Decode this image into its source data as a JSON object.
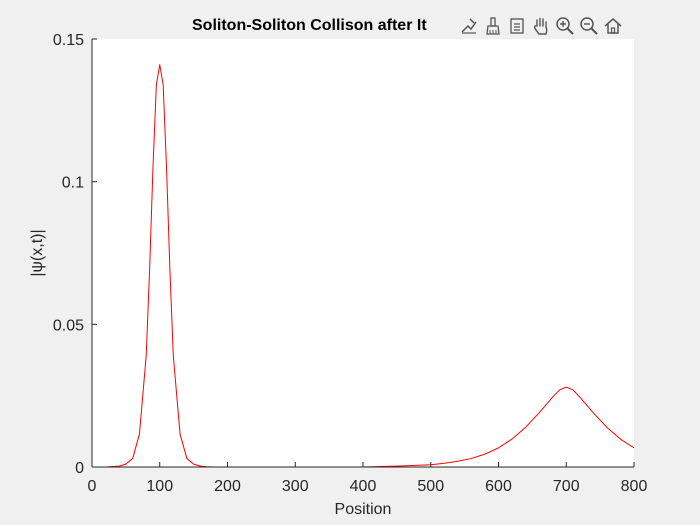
{
  "figure": {
    "background": "#f0f0f0",
    "axes_background": "#ffffff"
  },
  "toolbar": {
    "icons": [
      "data-tips-icon",
      "brush-icon",
      "legend-icon",
      "pan-icon",
      "zoom-in-icon",
      "zoom-out-icon",
      "home-icon"
    ]
  },
  "chart_data": {
    "type": "line",
    "title": "Soliton-Soliton Collison after It",
    "xlabel": "Position",
    "ylabel": "|ψ(x,t)|",
    "xlim": [
      0,
      800
    ],
    "ylim": [
      0,
      0.15
    ],
    "xticks": [
      "0",
      "100",
      "200",
      "300",
      "400",
      "500",
      "600",
      "700",
      "800"
    ],
    "yticks": [
      "0",
      "0.05",
      "0.1",
      "0.15"
    ],
    "grid": false,
    "line_color": "#ff0000",
    "series": [
      {
        "x": [
          0,
          20,
          40,
          50,
          60,
          70,
          80,
          85,
          90,
          95,
          100,
          105,
          110,
          115,
          120,
          130,
          140,
          150,
          160,
          170,
          180,
          200,
          250,
          300,
          350,
          400,
          450,
          500,
          520,
          540,
          560,
          580,
          600,
          620,
          640,
          660,
          680,
          690,
          700,
          710,
          720,
          740,
          760,
          780,
          800
        ],
        "y": [
          0,
          0,
          0.0003,
          0.001,
          0.003,
          0.0115,
          0.039,
          0.069,
          0.105,
          0.134,
          0.141,
          0.134,
          0.105,
          0.069,
          0.039,
          0.0115,
          0.003,
          0.001,
          0.0003,
          0.0001,
          0,
          0,
          0,
          0,
          0,
          0,
          0.0003,
          0.0008,
          0.0013,
          0.002,
          0.003,
          0.0045,
          0.0067,
          0.0098,
          0.0139,
          0.019,
          0.0245,
          0.027,
          0.028,
          0.027,
          0.0245,
          0.019,
          0.0139,
          0.0098,
          0.0067
        ]
      }
    ]
  }
}
